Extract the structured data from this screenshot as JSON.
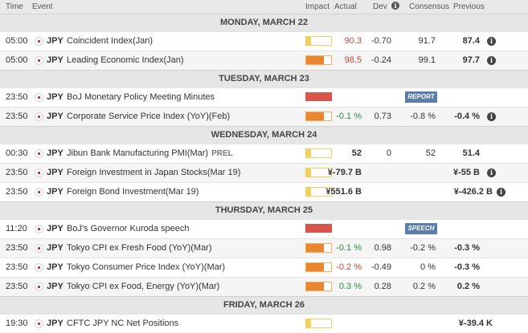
{
  "header": {
    "time": "Time",
    "event": "Event",
    "impact": "Impact",
    "actual": "Actual",
    "dev": "Dev",
    "consensus": "Consensus",
    "previous": "Previous"
  },
  "days": [
    {
      "label": "MONDAY, MARCH 22",
      "events": [
        {
          "time": "05:00",
          "currency": "JPY",
          "event": "Coincident Index(Jan)",
          "impact": "low",
          "actual": "90.3",
          "actual_color": "#c9433a",
          "dev": "-0.70",
          "consensus": "91.7",
          "previous": "87.4",
          "previous_info": true
        },
        {
          "time": "05:00",
          "currency": "JPY",
          "event": "Leading Economic Index(Jan)",
          "impact": "medium",
          "actual": "98.5",
          "actual_color": "#c9433a",
          "dev": "-0.24",
          "consensus": "99.1",
          "previous": "97.7",
          "previous_info": true
        }
      ]
    },
    {
      "label": "TUESDAY, MARCH 23",
      "events": [
        {
          "time": "23:50",
          "currency": "JPY",
          "event": "BoJ Monetary Policy Meeting Minutes",
          "impact": "high",
          "tag": "REPORT"
        },
        {
          "time": "23:50",
          "currency": "JPY",
          "event": "Corporate Service Price Index (YoY)(Feb)",
          "impact": "medium",
          "actual": "-0.1 %",
          "actual_color": "#2a8a3e",
          "dev": "0.73",
          "consensus": "-0.8 %",
          "previous": "-0.4 %",
          "previous_info": true
        }
      ]
    },
    {
      "label": "WEDNESDAY, MARCH 24",
      "events": [
        {
          "time": "00:30",
          "currency": "JPY",
          "event": "Jibun Bank Manufacturing PMI(Mar)",
          "event_tag": "PREL",
          "impact": "low",
          "actual": "52",
          "actual_color": "#333333",
          "dev": "0",
          "consensus": "52",
          "previous": "51.4"
        },
        {
          "time": "23:50",
          "currency": "JPY",
          "event": "Foreign Investment in Japan Stocks(Mar 19)",
          "impact": "low",
          "actual": "¥-79.7 B",
          "actual_color": "#333333",
          "previous": "¥-55 B",
          "previous_info": true
        },
        {
          "time": "23:50",
          "currency": "JPY",
          "event": "Foreign Bond Investment(Mar 19)",
          "impact": "low",
          "actual": "¥551.6 B",
          "actual_color": "#333333",
          "previous": "¥-426.2 B",
          "previous_info": true
        }
      ]
    },
    {
      "label": "THURSDAY, MARCH 25",
      "events": [
        {
          "time": "11:20",
          "currency": "JPY",
          "event": "BoJ's Governor Kuroda speech",
          "impact": "high",
          "tag": "SPEECH"
        },
        {
          "time": "23:50",
          "currency": "JPY",
          "event": "Tokyo CPI ex Fresh Food (YoY)(Mar)",
          "impact": "medium",
          "actual": "-0.1 %",
          "actual_color": "#2a8a3e",
          "dev": "0.98",
          "consensus": "-0.2 %",
          "previous": "-0.3 %"
        },
        {
          "time": "23:50",
          "currency": "JPY",
          "event": "Tokyo Consumer Price Index (YoY)(Mar)",
          "impact": "medium",
          "actual": "-0.2 %",
          "actual_color": "#c9433a",
          "dev": "-0.49",
          "consensus": "0 %",
          "previous": "-0.3 %"
        },
        {
          "time": "23:50",
          "currency": "JPY",
          "event": "Tokyo CPI ex Food, Energy (YoY)(Mar)",
          "impact": "medium",
          "actual": "0.3 %",
          "actual_color": "#2a8a3e",
          "dev": "0.28",
          "consensus": "0.2 %",
          "previous": "0.2 %"
        }
      ]
    },
    {
      "label": "FRIDAY, MARCH 26",
      "events": [
        {
          "time": "19:30",
          "currency": "JPY",
          "event": "CFTC JPY NC Net Positions",
          "impact": "low",
          "previous": "¥-39.4 K"
        }
      ]
    }
  ],
  "impact_levels": {
    "low": 0.2,
    "medium": 0.7,
    "high": 1.0
  },
  "colors": {
    "positive": "#2a8a3e",
    "negative": "#c9433a",
    "impact_high": "#d9544a",
    "impact_medium": "#ea8530",
    "impact_low": "#f0d060",
    "tag_bg": "#5a7ea8"
  }
}
